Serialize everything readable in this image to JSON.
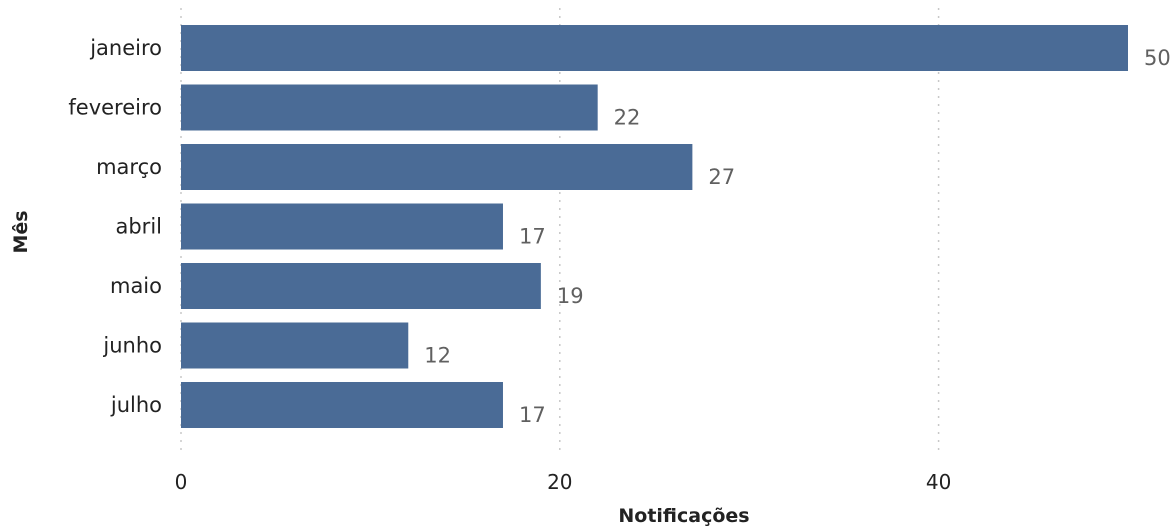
{
  "chart_data": {
    "type": "bar",
    "orientation": "horizontal",
    "categories": [
      "janeiro",
      "fevereiro",
      "março",
      "abril",
      "maio",
      "junho",
      "julho"
    ],
    "values": [
      50,
      22,
      27,
      17,
      19,
      12,
      17
    ],
    "xlabel": "Notificações",
    "ylabel": "Mês",
    "xlim": [
      0,
      50
    ],
    "xticks": [
      0,
      20,
      40
    ],
    "xtick_labels": [
      "0",
      "20",
      "40"
    ],
    "grid": "vertical dotted",
    "bar_color": "#4a6b96",
    "data_labels": true,
    "legend": "none"
  }
}
